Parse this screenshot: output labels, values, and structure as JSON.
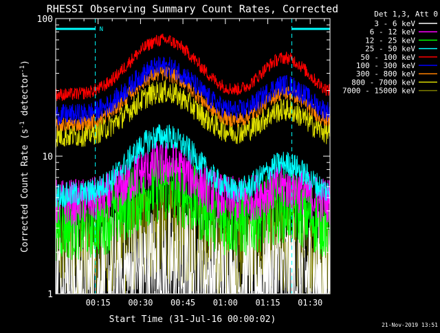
{
  "chart_data": {
    "type": "line",
    "title": "RHESSI Observing Summary Count Rates, Corrected",
    "xlabel": "Start Time (31-Jul-16 00:00:02)",
    "ylabel_main": "Corrected Count Rate (s",
    "ylabel_sup1": "-1",
    "ylabel_mid": " detector",
    "ylabel_sup2": "-1",
    "ylabel_end": ")",
    "yscale": "log",
    "xlim_minutes": [
      0,
      97
    ],
    "ylim": [
      1,
      100
    ],
    "x_ticks": [
      "00:15",
      "00:30",
      "00:45",
      "01:00",
      "01:15",
      "01:30"
    ],
    "x_tick_minutes": [
      15,
      30,
      45,
      60,
      75,
      90
    ],
    "y_ticks": [
      "1",
      "10",
      "100"
    ],
    "y_tick_values": [
      1,
      10,
      100
    ],
    "legend_header": "Det 1,3, Att 0",
    "timestamp": "21-Nov-2019 13:51",
    "night_label": "N",
    "night_bars_minutes": [
      [
        0,
        14
      ],
      [
        83.5,
        97
      ]
    ],
    "dashed_markers_minutes": [
      14,
      83.5,
      97
    ],
    "series": [
      {
        "name": "3 - 6 keV",
        "color": "#ffffff",
        "base": 1.2,
        "peak1": 1.2,
        "peak2": 1.1,
        "noise": 0.55
      },
      {
        "name": "6 - 12 keV",
        "color": "#ff00ff",
        "base": 4.6,
        "peak1": 1.9,
        "peak2": 1.3,
        "noise": 0.18
      },
      {
        "name": "12 - 25 keV",
        "color": "#00ff00",
        "base": 3.2,
        "peak1": 1.9,
        "peak2": 1.35,
        "noise": 0.28
      },
      {
        "name": "25 - 50 keV",
        "color": "#00ffff",
        "base": 5.2,
        "peak1": 2.7,
        "peak2": 1.7,
        "noise": 0.1
      },
      {
        "name": "50 - 100 keV",
        "color": "#ff0000",
        "base": 28,
        "peak1": 2.5,
        "peak2": 1.85,
        "noise": 0.05
      },
      {
        "name": "100 - 300 keV",
        "color": "#0000ff",
        "base": 20,
        "peak1": 2.25,
        "peak2": 1.65,
        "noise": 0.08
      },
      {
        "name": "300 - 800 keV",
        "color": "#ff8000",
        "base": 17,
        "peak1": 2.35,
        "peak2": 1.7,
        "noise": 0.06
      },
      {
        "name": "800 - 7000 keV",
        "color": "#dddd00",
        "base": 14,
        "peak1": 2.1,
        "peak2": 1.55,
        "noise": 0.09
      },
      {
        "name": "7000 - 15000 keV",
        "color": "#808000",
        "base": 1.9,
        "peak1": 1.5,
        "peak2": 1.2,
        "noise": 0.4
      }
    ]
  }
}
